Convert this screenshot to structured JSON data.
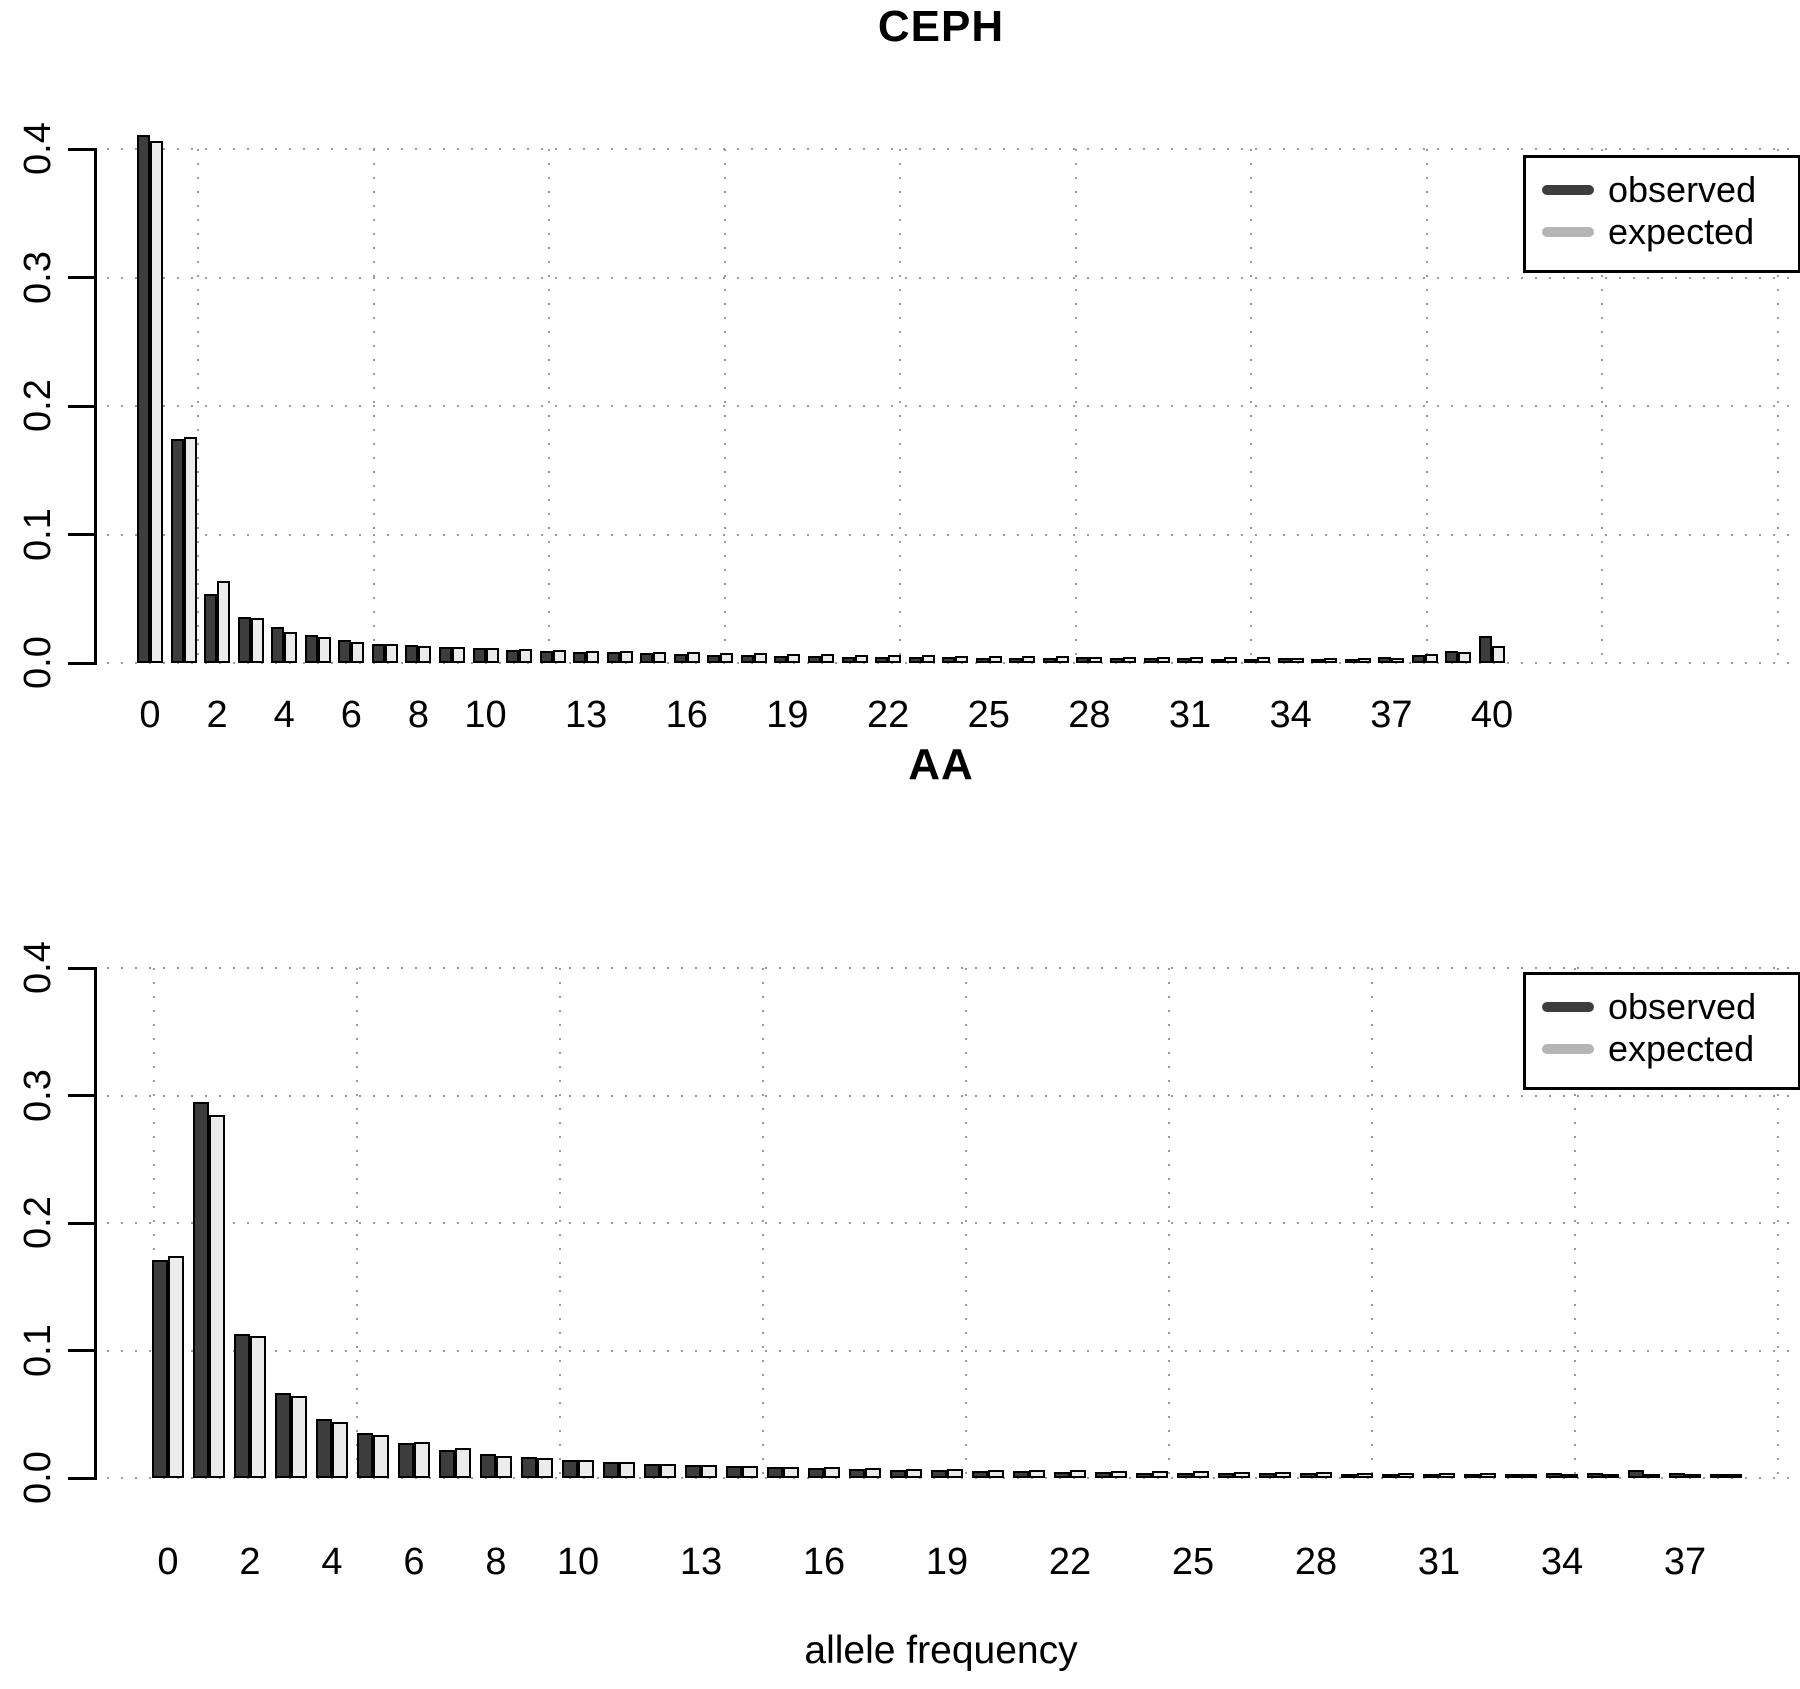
{
  "figure": {
    "xlabel": "allele frequency"
  },
  "colors": {
    "observed": "#3d3d3d",
    "expected_bar": "#ebebeb",
    "expected_legend": "#b5b5b5",
    "grid_dot": "#9a9a9a",
    "axis": "#000000"
  },
  "y_ticks": [
    "0.0",
    "0.1",
    "0.2",
    "0.3",
    "0.4"
  ],
  "chart_data": [
    {
      "type": "bar",
      "title": "CEPH",
      "xlabel": "allele frequency",
      "ylabel": "",
      "ylim": [
        0,
        0.4
      ],
      "grid": true,
      "legend_position": "top-right",
      "legend": [
        {
          "label": "observed"
        },
        {
          "label": "expected"
        }
      ],
      "categories": [
        0,
        1,
        2,
        3,
        4,
        5,
        6,
        7,
        8,
        9,
        10,
        11,
        12,
        13,
        14,
        15,
        16,
        17,
        18,
        19,
        20,
        21,
        22,
        23,
        24,
        25,
        26,
        27,
        28,
        29,
        30,
        31,
        32,
        33,
        34,
        35,
        36,
        37,
        38,
        39,
        40
      ],
      "x_tick_labels": [
        "0",
        "2",
        "4",
        "6",
        "8",
        "10",
        "13",
        "16",
        "19",
        "22",
        "25",
        "28",
        "31",
        "34",
        "37",
        "40"
      ],
      "x_tick_positions": [
        0,
        2,
        4,
        6,
        8,
        10,
        13,
        16,
        19,
        22,
        25,
        28,
        31,
        34,
        37,
        40
      ],
      "series": [
        {
          "name": "observed",
          "values": [
            0.411,
            0.174,
            0.054,
            0.036,
            0.028,
            0.022,
            0.018,
            0.015,
            0.0138,
            0.0125,
            0.0115,
            0.0103,
            0.0095,
            0.0088,
            0.0082,
            0.0077,
            0.007,
            0.0065,
            0.0062,
            0.0057,
            0.0052,
            0.005,
            0.0048,
            0.0046,
            0.0044,
            0.0042,
            0.0041,
            0.004,
            0.0044,
            0.0038,
            0.0037,
            0.0042,
            0.0035,
            0.0033,
            0.0037,
            0.0031,
            0.0029,
            0.0048,
            0.006,
            0.0095,
            0.021
          ]
        },
        {
          "name": "expected",
          "values": [
            0.406,
            0.176,
            0.064,
            0.035,
            0.024,
            0.02,
            0.0165,
            0.0145,
            0.0132,
            0.0122,
            0.0114,
            0.0107,
            0.0101,
            0.0096,
            0.0091,
            0.0086,
            0.0082,
            0.0078,
            0.0075,
            0.0071,
            0.0068,
            0.0065,
            0.0063,
            0.006,
            0.0058,
            0.0056,
            0.0054,
            0.0052,
            0.005,
            0.0049,
            0.0047,
            0.0046,
            0.0044,
            0.0043,
            0.0042,
            0.004,
            0.0039,
            0.0038,
            0.0073,
            0.0082,
            0.013
          ]
        }
      ]
    },
    {
      "type": "bar",
      "title": "AA",
      "xlabel": "allele frequency",
      "ylabel": "",
      "ylim": [
        0,
        0.4
      ],
      "grid": true,
      "legend_position": "top-right",
      "legend": [
        {
          "label": "observed"
        },
        {
          "label": "expected"
        }
      ],
      "categories": [
        0,
        1,
        2,
        3,
        4,
        5,
        6,
        7,
        8,
        9,
        10,
        11,
        12,
        13,
        14,
        15,
        16,
        17,
        18,
        19,
        20,
        21,
        22,
        23,
        24,
        25,
        26,
        27,
        28,
        29,
        30,
        31,
        32,
        33,
        34,
        35,
        36,
        37,
        38
      ],
      "x_tick_labels": [
        "0",
        "2",
        "4",
        "6",
        "8",
        "10",
        "13",
        "16",
        "19",
        "22",
        "25",
        "28",
        "31",
        "34",
        "37"
      ],
      "x_tick_positions": [
        0,
        2,
        4,
        6,
        8,
        10,
        13,
        16,
        19,
        22,
        25,
        28,
        31,
        34,
        37
      ],
      "series": [
        {
          "name": "observed",
          "values": [
            0.171,
            0.295,
            0.113,
            0.067,
            0.046,
            0.0355,
            0.0275,
            0.022,
            0.0188,
            0.0165,
            0.0145,
            0.0128,
            0.0107,
            0.01,
            0.0092,
            0.0085,
            0.0077,
            0.0071,
            0.0066,
            0.0061,
            0.0056,
            0.0052,
            0.005,
            0.0046,
            0.0043,
            0.0041,
            0.0039,
            0.0037,
            0.0036,
            0.0035,
            0.0033,
            0.0032,
            0.0031,
            0.0034,
            0.0042,
            0.004,
            0.0062,
            0.0036,
            0.0018
          ]
        },
        {
          "name": "expected",
          "values": [
            0.174,
            0.285,
            0.111,
            0.064,
            0.044,
            0.034,
            0.0282,
            0.0235,
            0.0173,
            0.0157,
            0.0142,
            0.0125,
            0.0112,
            0.0104,
            0.0096,
            0.0089,
            0.0083,
            0.0078,
            0.0073,
            0.0069,
            0.0065,
            0.0062,
            0.0059,
            0.0056,
            0.0053,
            0.0051,
            0.0049,
            0.0047,
            0.0045,
            0.0043,
            0.0042,
            0.004,
            0.0039,
            0.0032,
            0.0031,
            0.003,
            0.0029,
            0.0028,
            0.0012
          ]
        }
      ]
    }
  ]
}
